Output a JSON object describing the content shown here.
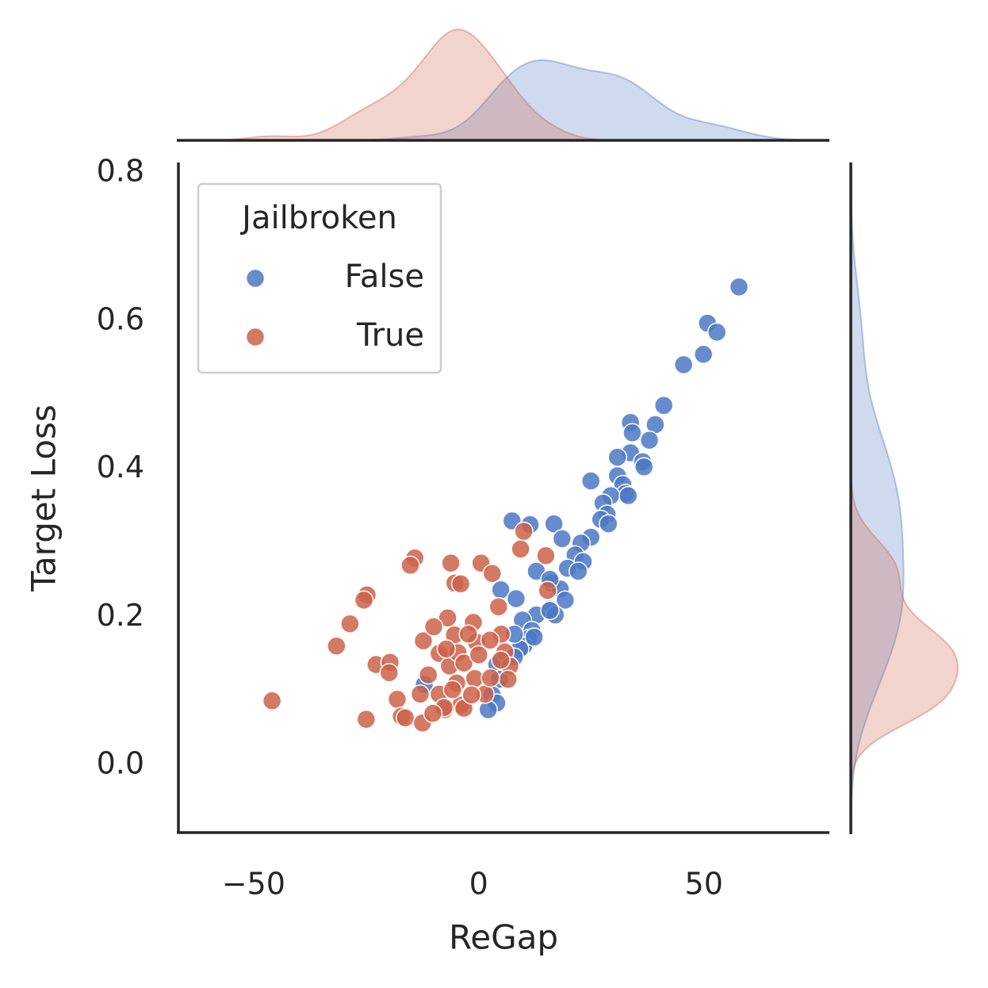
{
  "chart_data": {
    "type": "scatter",
    "xlabel": "ReGap",
    "ylabel": "Target Loss",
    "legend_title": "Jailbroken",
    "legend": "upper left",
    "marginal": "kde",
    "xlim": [
      -66.7,
      77.7
    ],
    "ylim": [
      -0.091,
      0.814
    ],
    "xticks": [
      {
        "value": -50,
        "label": "−50"
      },
      0,
      50
    ],
    "yticks": [
      {
        "value": 0,
        "label": "0.0"
      },
      0.2,
      0.4,
      0.6,
      0.8
    ],
    "series": [
      {
        "name": "False",
        "color": "#4c78c4",
        "x": [
          57.8,
          50.8,
          52.9,
          49.9,
          45.5,
          41.1,
          39.2,
          33.7,
          34.1,
          37.9,
          33.7,
          30.8,
          36.4,
          36.7,
          24.9,
          30.8,
          32.0,
          32.6,
          29.3,
          33.2,
          27.6,
          28.5,
          27.1,
          28.8,
          7.4,
          11.4,
          16.7,
          18.5,
          24.9,
          22.7,
          21.4,
          23.2,
          19.7,
          22.1,
          12.8,
          16.2,
          18.1,
          4.9,
          8.3,
          19.2,
          15.8,
          12.8,
          17.0,
          15.8,
          9.7,
          11.8,
          11.1,
          10.0,
          12.3,
          9.1,
          7.9,
          4.0,
          4.6,
          3.0,
          4.0,
          2.1,
          -12.1,
          15.8,
          7.9
        ],
        "values": [
          0.646,
          0.597,
          0.585,
          0.555,
          0.541,
          0.486,
          0.46,
          0.463,
          0.449,
          0.439,
          0.422,
          0.416,
          0.41,
          0.403,
          0.384,
          0.391,
          0.379,
          0.367,
          0.364,
          0.364,
          0.354,
          0.339,
          0.332,
          0.326,
          0.33,
          0.325,
          0.326,
          0.306,
          0.308,
          0.3,
          0.284,
          0.275,
          0.266,
          0.262,
          0.262,
          0.246,
          0.238,
          0.237,
          0.225,
          0.223,
          0.211,
          0.203,
          0.203,
          0.209,
          0.196,
          0.182,
          0.171,
          0.161,
          0.173,
          0.157,
          0.146,
          0.136,
          0.116,
          0.095,
          0.084,
          0.075,
          0.109,
          0.251,
          0.177
        ]
      },
      {
        "name": "True",
        "color": "#cc6149",
        "x": [
          -45.9,
          -31.6,
          -28.6,
          -24.8,
          -25.5,
          -22.8,
          -19.7,
          -19.9,
          -25.0,
          -18.1,
          -17.2,
          -16.3,
          -14.2,
          -15.2,
          -12.3,
          -12.5,
          -13.0,
          -11.2,
          -8.8,
          -8.8,
          -7.6,
          -6.5,
          -6.2,
          -5.3,
          -4.0,
          -6.9,
          -5.4,
          -4.6,
          -3.3,
          -4.9,
          -4.0,
          -3.3,
          -1.2,
          -0.5,
          0.0,
          0.5,
          3.0,
          4.4,
          5.0,
          5.8,
          6.9,
          6.5,
          1.4,
          -0.9,
          -1.6,
          -7.7,
          -10.2,
          9.3,
          10.0,
          14.9,
          15.3,
          -10.0,
          2.6,
          2.5,
          4.9,
          -5.8,
          -2.3,
          -7.2
        ],
        "values": [
          0.087,
          0.161,
          0.191,
          0.23,
          0.223,
          0.136,
          0.139,
          0.125,
          0.062,
          0.089,
          0.066,
          0.064,
          0.28,
          0.27,
          0.168,
          0.057,
          0.096,
          0.122,
          0.151,
          0.096,
          0.075,
          0.134,
          0.273,
          0.246,
          0.245,
          0.199,
          0.176,
          0.152,
          0.138,
          0.111,
          0.081,
          0.077,
          0.193,
          0.166,
          0.149,
          0.273,
          0.259,
          0.214,
          0.177,
          0.153,
          0.134,
          0.116,
          0.096,
          0.117,
          0.095,
          0.078,
          0.07,
          0.292,
          0.316,
          0.283,
          0.236,
          0.187,
          0.118,
          0.169,
          0.142,
          0.102,
          0.177,
          0.157
        ]
      }
    ]
  }
}
